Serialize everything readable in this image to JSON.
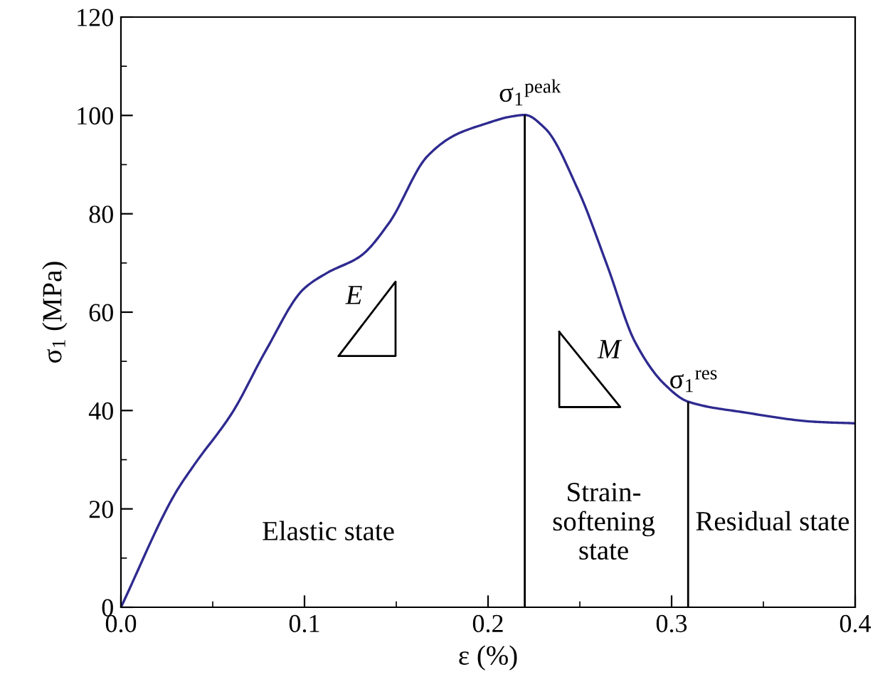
{
  "chart_data": {
    "type": "line",
    "xlabel": "ε (%)",
    "ylabel": "σ$_{1}$ (MPa)",
    "series": [
      {
        "color": "#2e2a8f",
        "x": [
          0,
          0.0295,
          0.04,
          0.0607,
          0.0788,
          0.0995,
          0.1124,
          0.1305,
          0.146,
          0.1667,
          0.182,
          0.1977,
          0.213,
          0.22,
          0.231,
          0.249,
          0.265,
          0.28,
          0.296,
          0.309,
          0.34,
          0.3785,
          0.4
        ],
        "values": [
          0,
          23.1,
          29.0,
          39.6,
          52.1,
          64.7,
          68.0,
          71.4,
          78.1,
          91.6,
          96.0,
          98.2,
          99.8,
          100.1,
          97.4,
          84.9,
          69.4,
          54.0,
          45.4,
          41.8,
          39.6,
          37.7,
          37.4
        ]
      }
    ],
    "xlim": [
      0,
      0.4
    ],
    "ylim": [
      0,
      120
    ],
    "xticks": [
      {
        "value": 0,
        "label": "0.0"
      },
      0.1,
      0.2,
      0.3,
      0.4
    ],
    "yticks": [
      0,
      20,
      40,
      60,
      80,
      100,
      120
    ],
    "marker": "none",
    "line_style": "solid",
    "grid": false,
    "legend": false,
    "ref_lines": [
      {
        "axis": "x",
        "value": 0.22,
        "label": "σ$_{1}$$^{peak}$",
        "color": "#000000"
      },
      {
        "axis": "x",
        "value": 0.309,
        "label": "σ$_{1}$$^{res}$",
        "color": "#000000"
      }
    ],
    "annotations": [
      "E",
      "M",
      "Elastic state",
      "Strain-\nsoftening\nstate",
      "Residual state"
    ]
  }
}
